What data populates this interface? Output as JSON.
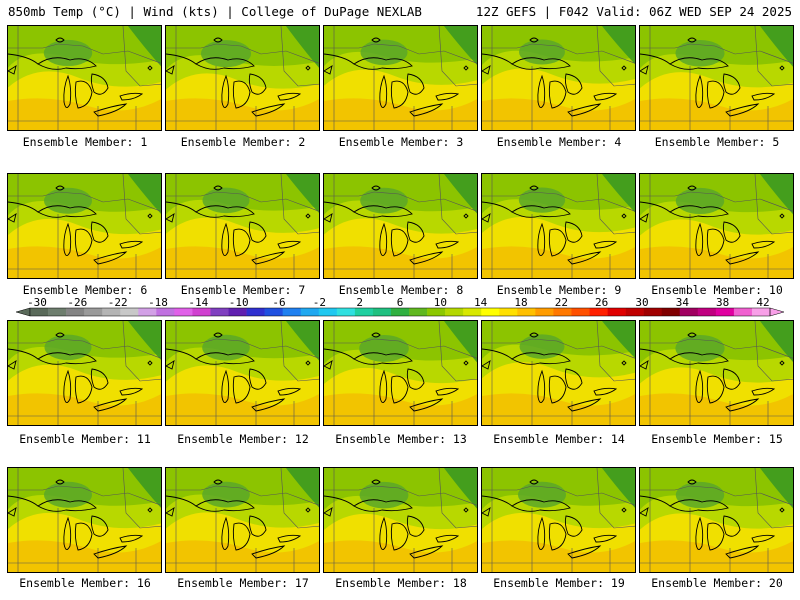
{
  "header": {
    "left": "850mb Temp (°C) | Wind (kts) | College of DuPage NEXLAB",
    "right": "12Z GEFS | F042 Valid: 06Z WED SEP 24 2025"
  },
  "panels": [
    {
      "label": "Ensemble Member: 1",
      "green_level": 0.62
    },
    {
      "label": "Ensemble Member: 2",
      "green_level": 0.7
    },
    {
      "label": "Ensemble Member: 3",
      "green_level": 0.55
    },
    {
      "label": "Ensemble Member: 4",
      "green_level": 0.5
    },
    {
      "label": "Ensemble Member: 5",
      "green_level": 0.65
    },
    {
      "label": "Ensemble Member: 6",
      "green_level": 0.6
    },
    {
      "label": "Ensemble Member: 7",
      "green_level": 0.55
    },
    {
      "label": "Ensemble Member: 8",
      "green_level": 0.58
    },
    {
      "label": "Ensemble Member: 9",
      "green_level": 0.52
    },
    {
      "label": "Ensemble Member: 10",
      "green_level": 0.62
    },
    {
      "label": "Ensemble Member: 11",
      "green_level": 0.55
    },
    {
      "label": "Ensemble Member: 12",
      "green_level": 0.58
    },
    {
      "label": "Ensemble Member: 13",
      "green_level": 0.68
    },
    {
      "label": "Ensemble Member: 14",
      "green_level": 0.45
    },
    {
      "label": "Ensemble Member: 15",
      "green_level": 0.66
    },
    {
      "label": "Ensemble Member: 16",
      "green_level": 0.6
    },
    {
      "label": "Ensemble Member: 17",
      "green_level": 0.58
    },
    {
      "label": "Ensemble Member: 18",
      "green_level": 0.64
    },
    {
      "label": "Ensemble Member: 19",
      "green_level": 0.6
    },
    {
      "label": "Ensemble Member: 20",
      "green_level": 0.62
    }
  ],
  "colorbar": {
    "ticks": [
      "-30",
      "-26",
      "-22",
      "-18",
      "-14",
      "-10",
      "-6",
      "-2",
      "2",
      "6",
      "10",
      "14",
      "18",
      "22",
      "26",
      "30",
      "34",
      "38",
      "42"
    ],
    "colors": [
      "#5a6a5a",
      "#6e7e6e",
      "#848484",
      "#9a9a9a",
      "#b4b4b4",
      "#c8c8c8",
      "#d2a0e6",
      "#c070e0",
      "#e060e8",
      "#d040d0",
      "#8040c0",
      "#6020b0",
      "#3030d0",
      "#2050e0",
      "#2080f0",
      "#20a8f0",
      "#20c8f0",
      "#30e0e0",
      "#20d0a0",
      "#20c080",
      "#30b040",
      "#60b820",
      "#8cc800",
      "#b4d800",
      "#d8e800",
      "#ffff00",
      "#ffe000",
      "#ffc000",
      "#ff9c00",
      "#ff7800",
      "#ff5000",
      "#ff2000",
      "#e00000",
      "#c00000",
      "#a00000",
      "#800000",
      "#a00060",
      "#c00080",
      "#e000a0",
      "#f060d0",
      "#f8a0e8"
    ]
  }
}
